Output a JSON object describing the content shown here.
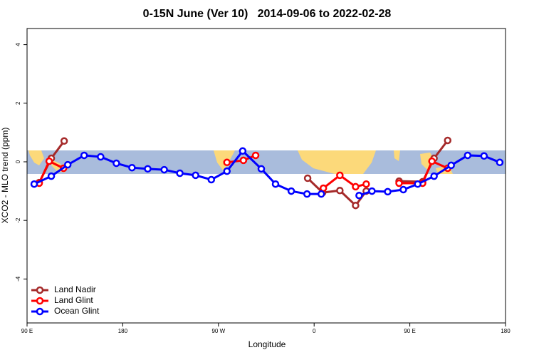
{
  "chart_data": {
    "type": "line",
    "title": "0-15N June (Ver 10)   2014-09-06 to 2022-02-28",
    "xlabel": "Longitude",
    "ylabel": "XCO2 - MLO trend (ppm)",
    "xlim": [
      90,
      540
    ],
    "ylim": [
      -5.5,
      4.55
    ],
    "xticks": [
      {
        "value": 90,
        "label": "90 E"
      },
      {
        "value": 180,
        "label": "180"
      },
      {
        "value": 270,
        "label": "90 W"
      },
      {
        "value": 360,
        "label": "0"
      },
      {
        "value": 450,
        "label": "90 E"
      },
      {
        "value": 540,
        "label": "180"
      }
    ],
    "yticks": [
      -4,
      -2,
      0,
      2,
      4
    ],
    "legend": "bottom-left",
    "series": [
      {
        "name": "Land Nadir",
        "color": "#a52a2a",
        "x": [
          101.4,
          112.8,
          124.9,
          null,
          353.9,
          368,
          384.2,
          399,
          409,
          null,
          439.9,
          462,
          472.8,
          485.6
        ],
        "values": [
          -0.71,
          0.12,
          0.71,
          null,
          -0.56,
          -1.05,
          -0.98,
          -1.49,
          -1.0,
          null,
          -0.66,
          -0.68,
          0.12,
          0.73
        ]
      },
      {
        "name": "Land Glint",
        "color": "#ff0000",
        "x": [
          101.4,
          110.8,
          124.3,
          null,
          278,
          293.5,
          305,
          null,
          368.7,
          384.2,
          399,
          409,
          null,
          439.9,
          462,
          470.8,
          485.6
        ],
        "values": [
          -0.73,
          0.02,
          -0.22,
          null,
          -0.02,
          0.05,
          0.22,
          null,
          -0.9,
          -0.46,
          -0.85,
          -0.76,
          null,
          -0.73,
          -0.73,
          0.02,
          -0.22
        ]
      },
      {
        "name": "Ocean Glint",
        "color": "#0000ff",
        "x": [
          96.7,
          112.8,
          128.3,
          143.7,
          159.2,
          174,
          188.7,
          203.5,
          219,
          233.7,
          248.5,
          263.3,
          278,
          292.8,
          310.3,
          323.7,
          338.5,
          353.3,
          366.7,
          null,
          402.3,
          414.4,
          429.2,
          443.9,
          457.4,
          472.8,
          488.9,
          504.4,
          519.8,
          534.6
        ],
        "values": [
          -0.76,
          -0.49,
          -0.1,
          0.22,
          0.17,
          -0.05,
          -0.2,
          -0.24,
          -0.27,
          -0.39,
          -0.46,
          -0.61,
          -0.32,
          0.37,
          -0.24,
          -0.76,
          -1.0,
          -1.1,
          -1.1,
          null,
          -1.15,
          -1.0,
          -1.02,
          -0.95,
          -0.76,
          -0.49,
          -0.12,
          0.22,
          0.2,
          -0.02
        ]
      }
    ]
  }
}
